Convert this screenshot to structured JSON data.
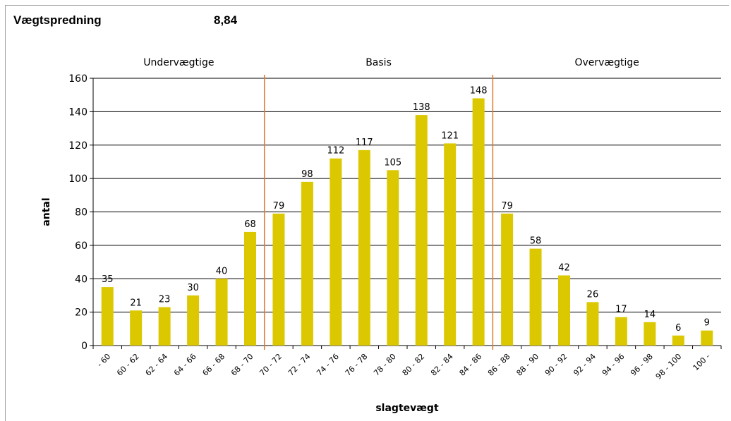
{
  "header": {
    "title": "Vægtspredning",
    "value": "8,84"
  },
  "chart_data": {
    "type": "bar",
    "xlabel": "slagtevægt",
    "ylabel": "antal",
    "ylim": [
      0,
      160
    ],
    "yticks": [
      0,
      20,
      40,
      60,
      80,
      100,
      120,
      140,
      160
    ],
    "grid": true,
    "categories": [
      "- 60",
      "60 - 62",
      "62 - 64",
      "64 - 66",
      "66 - 68",
      "68 - 70",
      "70 - 72",
      "72 - 74",
      "74 - 76",
      "76 - 78",
      "78 - 80",
      "80 - 82",
      "82 - 84",
      "84 - 86",
      "86 - 88",
      "88 - 90",
      "90 - 92",
      "92 - 94",
      "94 - 96",
      "96 - 98",
      "98 - 100",
      "100 -"
    ],
    "values": [
      35,
      21,
      23,
      30,
      40,
      68,
      79,
      98,
      112,
      117,
      105,
      138,
      121,
      148,
      79,
      58,
      42,
      26,
      17,
      14,
      6,
      9
    ],
    "bar_color": "#dcc800",
    "divider_color": "#e07830",
    "dividers_after_category_index": [
      5,
      13
    ],
    "regions": [
      {
        "label": "Undervægtige",
        "from": 0,
        "to": 5
      },
      {
        "label": "Basis",
        "from": 6,
        "to": 13
      },
      {
        "label": "Overvægtige",
        "from": 14,
        "to": 21
      }
    ]
  }
}
